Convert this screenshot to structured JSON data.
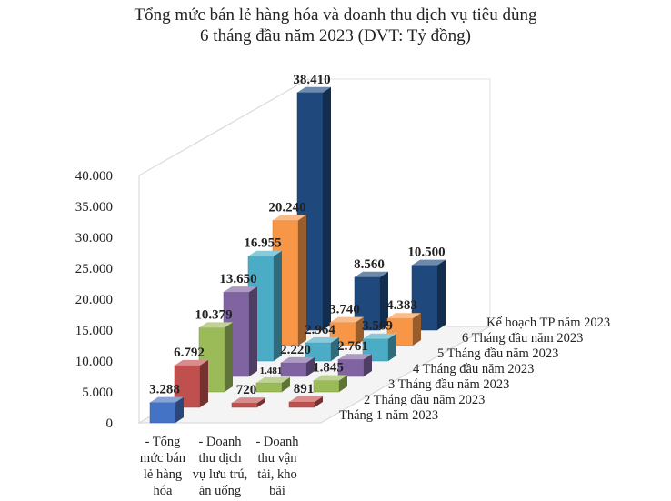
{
  "chart_data": {
    "type": "bar",
    "subtype": "3d-clustered-bar",
    "title": [
      "Tổng mức bán lẻ hàng hóa và doanh thu dịch vụ tiêu dùng",
      "6 tháng đầu năm 2023 (ĐVT: Tỷ đồng)"
    ],
    "ylim": [
      0,
      40000
    ],
    "y_ticks": [
      "0",
      "5.000",
      "10.000",
      "15.000",
      "20.000",
      "25.000",
      "30.000",
      "35.000",
      "40.000"
    ],
    "grid": false,
    "legend": "depth-axis",
    "categories": [
      [
        "- Tổng",
        "mức bán",
        "lẻ hàng",
        "hóa"
      ],
      [
        "- Doanh",
        "thu dịch",
        "vụ lưu trú,",
        "ăn uống"
      ],
      [
        "- Doanh",
        "thu vận",
        "tải, kho",
        "bãi"
      ]
    ],
    "series": [
      {
        "name": "Tháng 1 năm 2023",
        "color": "#4472C4",
        "values": [
          3288,
          null,
          null
        ],
        "labels": [
          "3.288",
          "",
          ""
        ]
      },
      {
        "name": "2 Tháng đầu năm 2023",
        "color": "#C0504D",
        "values": [
          6792,
          720,
          891
        ],
        "labels": [
          "6.792",
          "720",
          "891"
        ]
      },
      {
        "name": "3 Tháng đầu năm 2023",
        "color": "#9BBB59",
        "values": [
          10379,
          1481,
          1845
        ],
        "labels": [
          "10.379",
          "1.481",
          "1.845"
        ]
      },
      {
        "name": "4 Tháng đầu năm 2023",
        "color": "#8064A2",
        "values": [
          13650,
          2220,
          2761
        ],
        "labels": [
          "13.650",
          "2.220",
          "2.761"
        ]
      },
      {
        "name": "5 Tháng đầu năm 2023",
        "color": "#4BACC6",
        "values": [
          16955,
          2964,
          3569
        ],
        "labels": [
          "16.955",
          "2.964",
          "3.569"
        ]
      },
      {
        "name": "6 Tháng đầu năm 2023",
        "color": "#F79646",
        "values": [
          20240,
          3740,
          4383
        ],
        "labels": [
          "20.240",
          "3.740",
          "4.383"
        ]
      },
      {
        "name": "Kế hoạch TP năm 2023",
        "color": "#1F497D",
        "values": [
          38410,
          8560,
          10500
        ],
        "labels": [
          "38.410",
          "8.560",
          "10.500"
        ]
      }
    ]
  }
}
